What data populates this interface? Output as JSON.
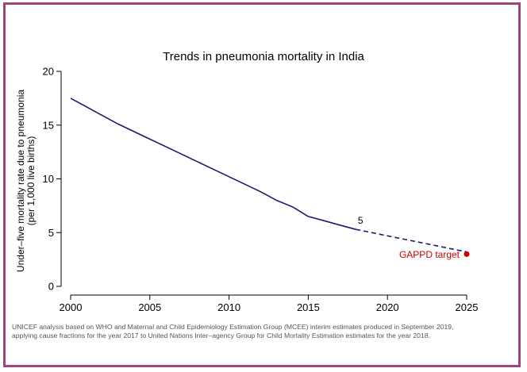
{
  "chart_data": {
    "type": "line",
    "title": "Trends in pneumonia mortality in India",
    "ylabel_line1": "Under–five mortality rate due to pneumonia",
    "ylabel_line2": "(per 1,000 live births)",
    "xlabel": "",
    "xlim": [
      2000,
      2025
    ],
    "ylim": [
      0,
      20
    ],
    "xticks": [
      "2000",
      "2005",
      "2010",
      "2015",
      "2020",
      "2025"
    ],
    "yticks": [
      "0",
      "5",
      "10",
      "15",
      "20"
    ],
    "grid": false,
    "series": [
      {
        "style": "solid",
        "color": "#1a1a6e",
        "x": [
          2000,
          2001,
          2002,
          2003,
          2004,
          2005,
          2006,
          2007,
          2008,
          2009,
          2010,
          2011,
          2012,
          2013,
          2014,
          2015,
          2016,
          2017,
          2018
        ],
        "y": [
          17.5,
          16.7,
          15.9,
          15.1,
          14.4,
          13.7,
          13.0,
          12.3,
          11.6,
          10.9,
          10.2,
          9.5,
          8.8,
          8.0,
          7.4,
          6.5,
          6.1,
          5.7,
          5.3
        ]
      },
      {
        "style": "dashed",
        "color": "#1a1a6e",
        "x": [
          2018,
          2025
        ],
        "y": [
          5.3,
          3.2
        ]
      }
    ],
    "annotations": [
      {
        "text": "5",
        "x": 2018.3,
        "y": 5.3,
        "color": "#000000"
      },
      {
        "text": "GAPPD target",
        "x": 2025,
        "y": 3.0,
        "color": "#cc0000"
      }
    ],
    "target_point": {
      "x": 2025,
      "y": 3.0,
      "color": "#cc0000"
    }
  },
  "footnote": {
    "line1": "UNICEF analysis based on WHO and Maternal and Child Epidemiology Estimation Group (MCEE) interim estimates produced in September 2019,",
    "line2": "applying cause fractions for the year 2017 to United Nations Inter–agency Group for Child Mortality Estimation estimates for the year 2018."
  },
  "colors": {
    "frame": "#a0457a",
    "line": "#1a1a6e",
    "target": "#cc0000"
  }
}
